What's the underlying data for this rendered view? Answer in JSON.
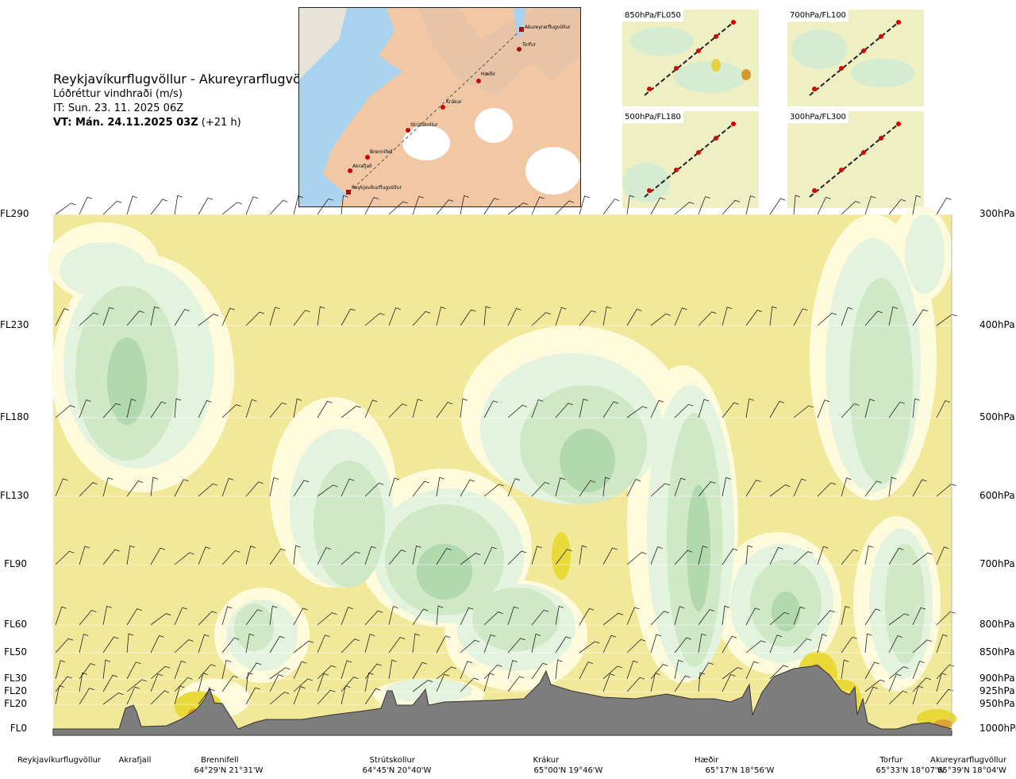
{
  "header": {
    "route": "Reykjavíkurflugvöllur - Akureyrarflugvöllur",
    "parameter": "Lóðréttur vindhraði (m/s)",
    "issue_time": "IT: Sun. 23. 11. 2025 06Z",
    "valid_time": "VT: Mán. 24.11.2025 03Z",
    "lead_time": "(+21 h)"
  },
  "map": {
    "points": [
      "Akureyrarflugvöllur",
      "Torfur",
      "Hæðir",
      "Krákur",
      "Strútskollur",
      "Brennifell",
      "Akrafjall",
      "Reykjavíkurflugvöllur"
    ]
  },
  "panels": [
    "850hPa/FL050",
    "700hPa/FL100",
    "500hPa/FL180",
    "300hPa/FL300"
  ],
  "chart_data": {
    "type": "heatmap",
    "title": "Lóðréttur vindhraði (m/s)",
    "left_axis": [
      "FL290",
      "FL230",
      "FL180",
      "FL130",
      "FL90",
      "FL60",
      "FL50",
      "FL30",
      "FL20",
      "FL20",
      "FL0"
    ],
    "right_axis": [
      "300hPa",
      "400hPa",
      "500hPa",
      "600hPa",
      "700hPa",
      "800hPa",
      "850hPa",
      "900hPa",
      "925hPa",
      "950hPa",
      "1000hPa"
    ],
    "levels_hpa": [
      300,
      400,
      500,
      600,
      700,
      800,
      850,
      900,
      925,
      950,
      1000
    ],
    "locations": [
      {
        "name": "Reykjavíkurflugvöllur",
        "coord": ""
      },
      {
        "name": "Akrafjall",
        "coord": ""
      },
      {
        "name": "Brennifell",
        "coord": "64°29'N 21°31'W"
      },
      {
        "name": "Strútskollur",
        "coord": "64°45'N 20°40'W"
      },
      {
        "name": "Krákur",
        "coord": "65°00'N 19°46'W"
      },
      {
        "name": "Hæðir",
        "coord": "65°17'N 18°56'W"
      },
      {
        "name": "Torfur",
        "coord": "65°33'N 18°07'W"
      },
      {
        "name": "Akureyrarflugvöllur",
        "coord": "65°39'N 18°04'W"
      }
    ],
    "colors": {
      "background": "#f2e89a",
      "weak": "#fdfbdc",
      "pale_green": "#e3f3dd",
      "green": "#cfe8c5",
      "dark_green": "#b2d8ad",
      "yellow": "#e9da3a",
      "orange": "#e0a236",
      "terrain": "#7d7d7d"
    }
  }
}
